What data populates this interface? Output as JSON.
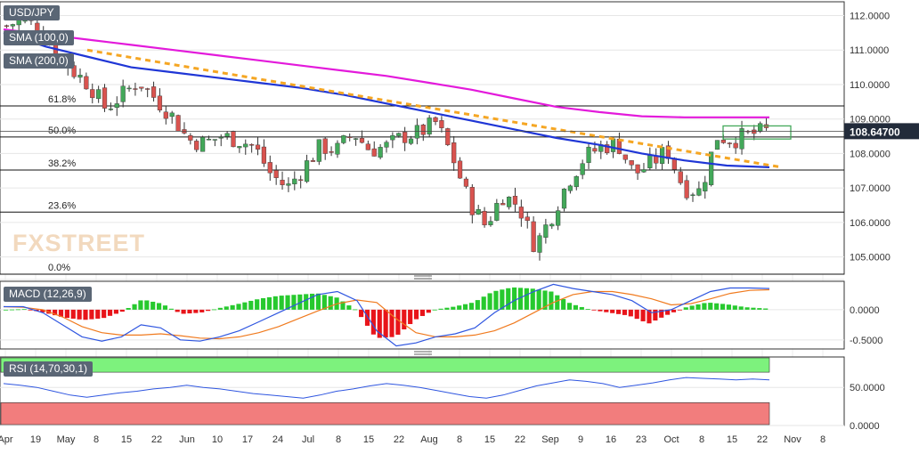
{
  "colors": {
    "bull": "#43a85a",
    "bear": "#d9534f",
    "sma100": "#1f36d6",
    "sma200": "#e31adb",
    "trend": "#f5a623",
    "macd": "#2f56e0",
    "signal": "#f07a1e",
    "rsi_line": "#2f56e0",
    "rsi_upper": "#7df27d",
    "rsi_lower": "#f27d7d",
    "price_tag": "#222b3a"
  },
  "instrument": "USD/JPY",
  "legend": {
    "sma100": "SMA (100,0)",
    "sma200": "SMA (200,0)",
    "macd": "MACD (12,26,9)",
    "rsi": "RSI (14,70,30,1)"
  },
  "watermark": "FXSTREET",
  "chart_data": [
    {
      "type": "line",
      "panel": "price",
      "style": "candlestick",
      "ylim": [
        104.5,
        112.4
      ],
      "yticks": [
        105,
        106,
        107,
        108,
        109,
        110,
        111,
        112
      ],
      "ytick_labels": [
        "105.0000",
        "106.0000",
        "107.0000",
        "108.0000",
        "109.0000",
        "110.0000",
        "111.0000",
        "112.0000"
      ],
      "last_price": 108.647,
      "last_price_label": "108.64700",
      "fib_levels": [
        {
          "label": "61.8%",
          "value": 109.38
        },
        {
          "label": "50.0%",
          "value": 108.48
        },
        {
          "label": "38.2%",
          "value": 107.52
        },
        {
          "label": "23.6%",
          "value": 106.3
        },
        {
          "label": "0.0%",
          "value": 104.5
        }
      ],
      "x_tick_labels": [
        "Apr",
        "19",
        "May",
        "8",
        "15",
        "22",
        "Jun",
        "10",
        "17",
        "24",
        "Jul",
        "8",
        "15",
        "22",
        "Aug",
        "8",
        "15",
        "22",
        "Sep",
        "9",
        "16",
        "23",
        "Oct",
        "8",
        "15",
        "22",
        "Nov",
        "8"
      ],
      "close_path": [
        111.7,
        111.9,
        111.6,
        111.0,
        110.4,
        110.0,
        109.3,
        109.7,
        110.1,
        109.6,
        109.1,
        108.4,
        108.3,
        108.5,
        108.4,
        108.2,
        107.4,
        107.0,
        107.6,
        108.2,
        108.1,
        108.6,
        108.1,
        108.2,
        108.5,
        108.6,
        108.9,
        107.9,
        106.6,
        105.9,
        106.8,
        106.5,
        105.3,
        106.2,
        107.2,
        107.9,
        108.2,
        108.3,
        107.4,
        107.7,
        108.1,
        107.0,
        106.9,
        108.5,
        108.4,
        108.55,
        108.65
      ],
      "candle_count": 125,
      "series": [
        {
          "name": "SMA (100,0)",
          "values": [
            111.5,
            111.1,
            110.8,
            110.5,
            110.35,
            110.2,
            110.05,
            109.9,
            109.7,
            109.45,
            109.2,
            108.95,
            108.7,
            108.45,
            108.25,
            108.0,
            107.8,
            107.65,
            107.6
          ]
        },
        {
          "name": "SMA (200,0)",
          "values": [
            111.6,
            111.45,
            111.3,
            111.15,
            111.0,
            110.85,
            110.7,
            110.55,
            110.4,
            110.25,
            110.05,
            109.85,
            109.6,
            109.35,
            109.2,
            109.08,
            109.05,
            109.05,
            109.05
          ]
        }
      ],
      "trendline": {
        "start": 111.0,
        "end": 107.6
      },
      "consolidation_box": [
        108.42,
        108.8
      ]
    },
    {
      "type": "bar",
      "panel": "macd",
      "ylim": [
        -0.65,
        0.47
      ],
      "yticks": [
        -0.5,
        0,
        0.5
      ],
      "ytick_labels": [
        "-0.5000",
        "0.0000",
        ""
      ],
      "macd_path": [
        0.05,
        0.05,
        -0.05,
        -0.25,
        -0.45,
        -0.52,
        -0.45,
        -0.25,
        -0.3,
        -0.5,
        -0.52,
        -0.45,
        -0.35,
        -0.2,
        -0.05,
        0.1,
        0.25,
        0.3,
        0.15,
        -0.35,
        -0.6,
        -0.55,
        -0.45,
        -0.4,
        -0.3,
        -0.05,
        0.15,
        0.3,
        0.42,
        0.35,
        0.3,
        0.25,
        0.15,
        -0.05,
        0.0,
        0.15,
        0.3,
        0.36,
        0.36,
        0.35
      ],
      "signal_path": [
        0.05,
        0.04,
        0.0,
        -0.12,
        -0.28,
        -0.38,
        -0.42,
        -0.42,
        -0.4,
        -0.43,
        -0.47,
        -0.48,
        -0.45,
        -0.38,
        -0.28,
        -0.15,
        -0.02,
        0.1,
        0.16,
        0.12,
        -0.15,
        -0.38,
        -0.45,
        -0.45,
        -0.42,
        -0.35,
        -0.22,
        -0.05,
        0.12,
        0.25,
        0.3,
        0.3,
        0.25,
        0.18,
        0.08,
        0.1,
        0.18,
        0.27,
        0.32,
        0.33
      ]
    },
    {
      "type": "line",
      "panel": "rsi",
      "ylim": [
        0,
        90
      ],
      "yticks": [
        0,
        50
      ],
      "ytick_labels": [
        "0.0000",
        "50.0000"
      ],
      "upper": 70,
      "lower": 30,
      "values": [
        55,
        53,
        50,
        45,
        40,
        37,
        40,
        43,
        45,
        48,
        50,
        53,
        50,
        48,
        45,
        42,
        40,
        38,
        36,
        40,
        45,
        48,
        52,
        55,
        53,
        50,
        46,
        42,
        38,
        36,
        40,
        46,
        52,
        56,
        60,
        58,
        55,
        50,
        53,
        56,
        60,
        63,
        62,
        61,
        60,
        61,
        60
      ]
    }
  ]
}
